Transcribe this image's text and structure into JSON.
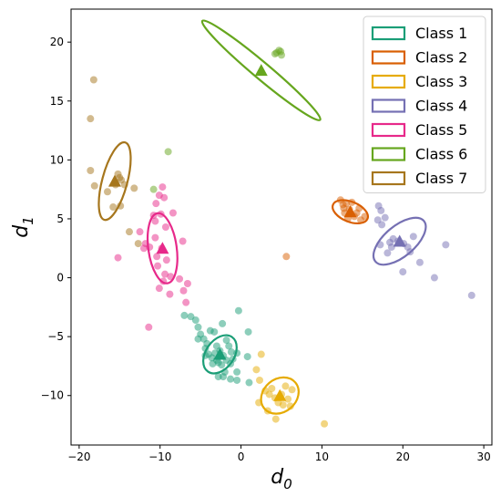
{
  "chart_data": {
    "type": "scatter",
    "xlabel": "d",
    "xlabel_sub": "0",
    "ylabel": "d",
    "ylabel_sub": "1",
    "xlim": [
      -21,
      31
    ],
    "ylim": [
      -14.2,
      22.8
    ],
    "xticks": [
      -20,
      -10,
      0,
      10,
      20,
      30
    ],
    "yticks": [
      -10,
      -5,
      0,
      5,
      10,
      15,
      20
    ],
    "xtick_labels": [
      "−20",
      "−10",
      "0",
      "10",
      "20",
      "30"
    ],
    "ytick_labels": [
      "−10",
      "−5",
      "0",
      "5",
      "10",
      "15",
      "20"
    ],
    "legend_position": "top-right",
    "series": [
      {
        "name": "Class 1",
        "color": "#1b9e77",
        "mean": [
          -2.6,
          -6.5
        ],
        "ellipse": {
          "rx": 2.6,
          "ry": 1.2,
          "angle": -55
        },
        "points": [
          [
            -7,
            -3.2
          ],
          [
            -6.2,
            -3.3
          ],
          [
            -5.6,
            -3.6
          ],
          [
            -5.3,
            -4.2
          ],
          [
            -5.0,
            -4.8
          ],
          [
            -4.6,
            -5.2
          ],
          [
            -5.3,
            -5.2
          ],
          [
            -4.2,
            -5.6
          ],
          [
            -3.8,
            -4.5
          ],
          [
            -3.3,
            -4.6
          ],
          [
            -2.3,
            -3.9
          ],
          [
            -4.4,
            -6.0
          ],
          [
            -4.0,
            -6.5
          ],
          [
            -3.6,
            -6.8
          ],
          [
            -3.0,
            -5.8
          ],
          [
            -2.6,
            -6.2
          ],
          [
            -2.2,
            -6.6
          ],
          [
            -1.8,
            -5.3
          ],
          [
            -1.5,
            -5.8
          ],
          [
            -1.2,
            -6.3
          ],
          [
            -1.8,
            -7.0
          ],
          [
            -1.3,
            -7.3
          ],
          [
            -2.4,
            -7.4
          ],
          [
            -3.0,
            -7.0
          ],
          [
            -3.5,
            -7.3
          ],
          [
            -2.0,
            -8.0
          ],
          [
            -2.8,
            -8.4
          ],
          [
            -2.2,
            -8.4
          ],
          [
            -1.3,
            -8.6
          ],
          [
            -0.5,
            -8.0
          ],
          [
            -0.5,
            -8.7
          ],
          [
            -0.5,
            -6.4
          ],
          [
            0.8,
            -6.7
          ],
          [
            -0.3,
            -2.8
          ],
          [
            0.9,
            -4.6
          ],
          [
            1.0,
            -8.9
          ],
          [
            -4.4,
            -6.6
          ],
          [
            -3.2,
            -6.4
          ],
          [
            -2.8,
            -7.2
          ],
          [
            -1.0,
            -6.9
          ]
        ]
      },
      {
        "name": "Class 2",
        "color": "#d95f02",
        "mean": [
          13.5,
          5.6
        ],
        "ellipse": {
          "rx": 2.3,
          "ry": 0.85,
          "angle": 22
        },
        "points": [
          [
            12.3,
            6.6
          ],
          [
            12.6,
            6.2
          ],
          [
            12.8,
            5.5
          ],
          [
            13.0,
            6.3
          ],
          [
            13.4,
            5.8
          ],
          [
            13.7,
            6.4
          ],
          [
            14.0,
            5.2
          ],
          [
            14.3,
            5.5
          ],
          [
            13.2,
            5.0
          ],
          [
            14.8,
            4.9
          ],
          [
            15.3,
            5.2
          ],
          [
            14.6,
            5.9
          ],
          [
            5.6,
            1.8
          ],
          [
            12.7,
            5.9
          ]
        ]
      },
      {
        "name": "Class 3",
        "color": "#e6ab02",
        "mean": [
          4.8,
          -10.0
        ],
        "ellipse": {
          "rx": 2.5,
          "ry": 1.4,
          "angle": -40
        },
        "points": [
          [
            1.9,
            -7.8
          ],
          [
            2.5,
            -6.5
          ],
          [
            2.3,
            -8.7
          ],
          [
            2.2,
            -10.6
          ],
          [
            3.0,
            -9.6
          ],
          [
            3.5,
            -9.9
          ],
          [
            3.8,
            -9.4
          ],
          [
            4.2,
            -10.2
          ],
          [
            4.6,
            -10.6
          ],
          [
            5.0,
            -9.9
          ],
          [
            5.5,
            -9.2
          ],
          [
            5.8,
            -10.3
          ],
          [
            6.3,
            -9.5
          ],
          [
            6.1,
            -10.9
          ],
          [
            4.3,
            -12.0
          ],
          [
            3.3,
            -11.3
          ],
          [
            10.3,
            -12.4
          ],
          [
            5.2,
            -10.8
          ]
        ]
      },
      {
        "name": "Class 4",
        "color": "#7570b3",
        "mean": [
          19.6,
          3.1
        ],
        "ellipse": {
          "rx": 3.9,
          "ry": 1.3,
          "angle": -40
        },
        "points": [
          [
            17.0,
            6.1
          ],
          [
            17.3,
            5.7
          ],
          [
            16.9,
            4.9
          ],
          [
            17.4,
            4.5
          ],
          [
            17.8,
            5.1
          ],
          [
            17.2,
            2.8
          ],
          [
            18.1,
            2.1
          ],
          [
            18.6,
            2.6
          ],
          [
            18.8,
            3.3
          ],
          [
            19.4,
            3.1
          ],
          [
            20.1,
            2.9
          ],
          [
            20.6,
            2.6
          ],
          [
            21.3,
            3.5
          ],
          [
            20.9,
            2.2
          ],
          [
            22.1,
            1.3
          ],
          [
            23.9,
            0.0
          ],
          [
            25.3,
            2.8
          ],
          [
            28.5,
            -1.5
          ],
          [
            20.0,
            0.5
          ],
          [
            18.4,
            3.0
          ]
        ]
      },
      {
        "name": "Class 5",
        "color": "#e7298a",
        "mean": [
          -9.7,
          2.5
        ],
        "ellipse": {
          "rx": 1.75,
          "ry": 3.0,
          "angle": -8
        },
        "points": [
          [
            -9.7,
            7.7
          ],
          [
            -10.1,
            7.0
          ],
          [
            -9.5,
            6.8
          ],
          [
            -10.5,
            6.3
          ],
          [
            -10.8,
            5.3
          ],
          [
            -9.9,
            5.4
          ],
          [
            -8.4,
            5.5
          ],
          [
            -10.6,
            4.8
          ],
          [
            -9.3,
            4.3
          ],
          [
            -12.5,
            3.9
          ],
          [
            -11.8,
            2.9
          ],
          [
            -11.3,
            2.6
          ],
          [
            -10.6,
            3.4
          ],
          [
            -9.8,
            2.5
          ],
          [
            -9.2,
            1.5
          ],
          [
            -10.3,
            1.0
          ],
          [
            -9.4,
            0.3
          ],
          [
            -8.7,
            0.1
          ],
          [
            -9.6,
            -0.3
          ],
          [
            -10.1,
            -0.9
          ],
          [
            -8.8,
            -1.4
          ],
          [
            -7.6,
            -0.1
          ],
          [
            -7.2,
            3.1
          ],
          [
            -6.6,
            -0.5
          ],
          [
            -7.1,
            -1.1
          ],
          [
            -6.8,
            -2.1
          ],
          [
            -11.4,
            -4.2
          ],
          [
            -15.2,
            1.7
          ],
          [
            -12.0,
            2.5
          ],
          [
            -10.4,
            1.8
          ]
        ]
      },
      {
        "name": "Class 6",
        "color": "#66a61e",
        "mean": [
          2.5,
          17.6
        ],
        "ellipse": {
          "rx": 9.5,
          "ry": 0.7,
          "angle": 40
        },
        "points": [
          [
            4.4,
            19.1
          ],
          [
            4.7,
            19.3
          ],
          [
            5.0,
            18.9
          ],
          [
            4.2,
            19.0
          ],
          [
            -10.8,
            7.5
          ],
          [
            -9.0,
            10.7
          ],
          [
            4.9,
            19.2
          ]
        ]
      },
      {
        "name": "Class 7",
        "color": "#a6761d",
        "mean": [
          -15.6,
          8.2
        ],
        "ellipse": {
          "rx": 1.55,
          "ry": 3.4,
          "angle": 15
        },
        "points": [
          [
            -18.2,
            16.8
          ],
          [
            -18.6,
            13.5
          ],
          [
            -18.6,
            9.1
          ],
          [
            -18.1,
            7.8
          ],
          [
            -16.5,
            7.3
          ],
          [
            -15.5,
            7.9
          ],
          [
            -15.2,
            8.8
          ],
          [
            -14.8,
            8.3
          ],
          [
            -14.4,
            7.9
          ],
          [
            -13.2,
            7.6
          ],
          [
            -15.8,
            6.0
          ],
          [
            -14.9,
            6.1
          ],
          [
            -13.8,
            3.9
          ],
          [
            -12.7,
            2.9
          ],
          [
            -15.0,
            8.5
          ]
        ]
      }
    ]
  }
}
